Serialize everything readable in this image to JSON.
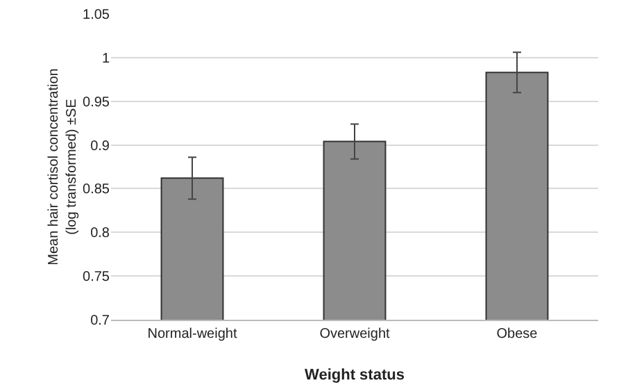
{
  "chart_data": {
    "type": "bar",
    "xlabel": "Weight status",
    "ylabel": "Mean hair cortisol concentration (log transformed) ±SE",
    "categories": [
      "Normal-weight",
      "Overweight",
      "Obese"
    ],
    "values": [
      0.862,
      0.904,
      0.983
    ],
    "errors": [
      0.024,
      0.02,
      0.023
    ],
    "color": "#8c8c8c",
    "ylim": [
      0.7,
      1.05
    ],
    "yticks": [
      0.7,
      0.75,
      0.8,
      0.85,
      0.9,
      0.95,
      1,
      1.05
    ],
    "grid": "y"
  }
}
